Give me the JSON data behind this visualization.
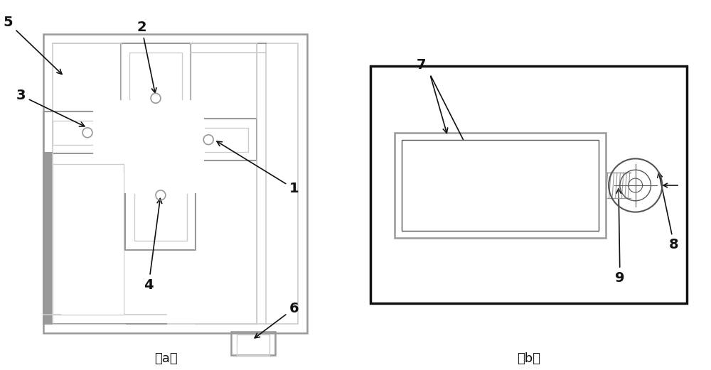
{
  "bg_color": "#ffffff",
  "line_color": "#222222",
  "gray_color": "#999999",
  "light_gray": "#bbbbbb",
  "fig_width": 10.0,
  "fig_height": 5.21,
  "label_a": "（a）",
  "label_b": "（b）"
}
